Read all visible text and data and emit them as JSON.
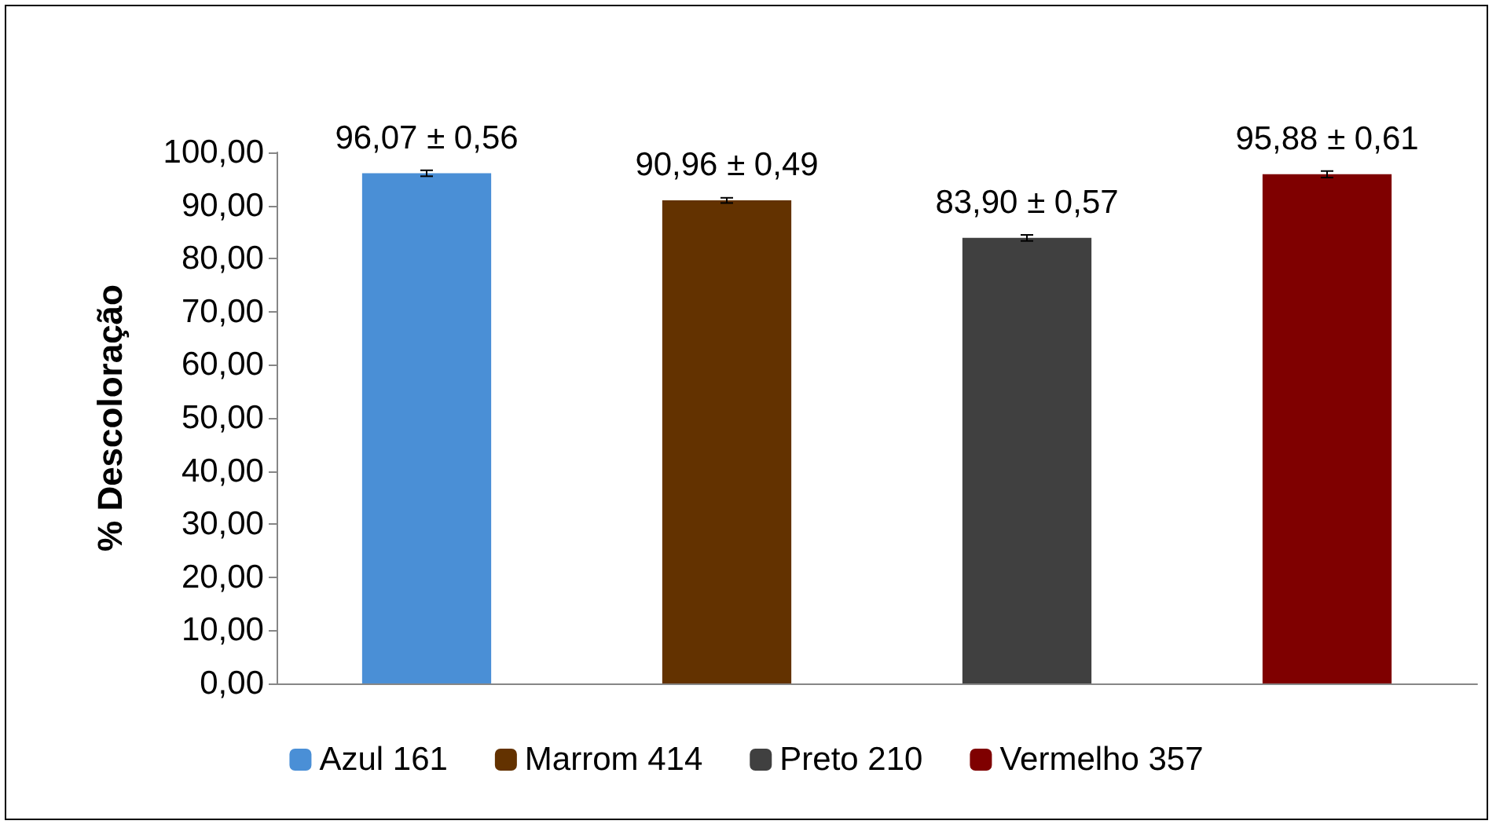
{
  "chart_data": {
    "type": "bar",
    "ylabel": "% Descoloração",
    "categories": [
      null,
      null,
      null,
      null
    ],
    "series": [
      {
        "name": "Azul 161",
        "color": "#4a8fd6",
        "values": [
          96.07,
          null,
          null,
          null
        ],
        "errors": [
          0.56,
          null,
          null,
          null
        ],
        "value_labels": [
          "96,07 ± 0,56",
          null,
          null,
          null
        ]
      },
      {
        "name": "Marrom 414",
        "color": "#633200",
        "values": [
          null,
          90.96,
          null,
          null
        ],
        "errors": [
          null,
          0.49,
          null,
          null
        ],
        "value_labels": [
          null,
          "90,96 ± 0,49",
          null,
          null
        ]
      },
      {
        "name": "Preto 210",
        "color": "#404040",
        "values": [
          null,
          null,
          83.9,
          null
        ],
        "errors": [
          null,
          null,
          0.57,
          null
        ],
        "value_labels": [
          null,
          null,
          "83,90 ± 0,57",
          null
        ]
      },
      {
        "name": "Vermelho 357",
        "color": "#7f0000",
        "values": [
          null,
          null,
          null,
          95.88
        ],
        "errors": [
          null,
          null,
          null,
          0.61
        ],
        "value_labels": [
          null,
          null,
          null,
          "95,88 ± 0,61"
        ]
      }
    ],
    "ylim": [
      0,
      100
    ],
    "yticks": [
      {
        "value": 0,
        "label": "0,00"
      },
      {
        "value": 10,
        "label": "10,00"
      },
      {
        "value": 20,
        "label": "20,00"
      },
      {
        "value": 30,
        "label": "30,00"
      },
      {
        "value": 40,
        "label": "40,00"
      },
      {
        "value": 50,
        "label": "50,00"
      },
      {
        "value": 60,
        "label": "60,00"
      },
      {
        "value": 70,
        "label": "70,00"
      },
      {
        "value": 80,
        "label": "80,00"
      },
      {
        "value": 90,
        "label": "90,00"
      },
      {
        "value": 100,
        "label": "100,00"
      }
    ],
    "grid": false,
    "legend": "bottom"
  }
}
